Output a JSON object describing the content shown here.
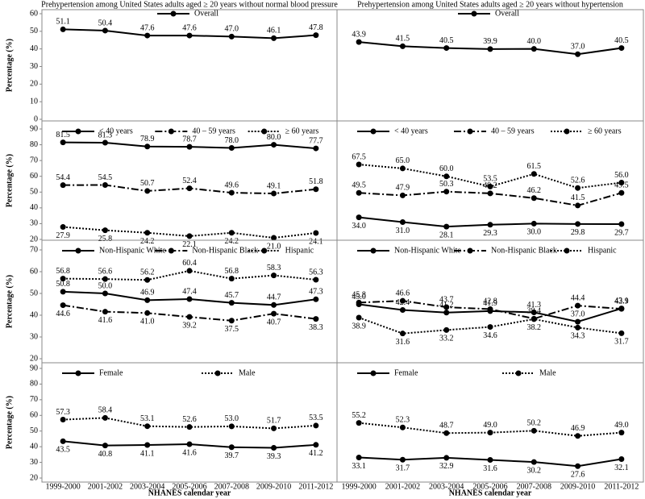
{
  "chart_data": [
    {
      "type": "line",
      "title": "Prehypertension among United States adults aged ≥ 20 years without normal blood pressure",
      "ylabel": "Percentage (%)",
      "ylim": [
        0,
        60
      ],
      "yticks": [
        0,
        10,
        20,
        30,
        40,
        50,
        60
      ],
      "legend": "top",
      "series": [
        {
          "name": "Overall",
          "color": "#000000",
          "dash": "solid",
          "values": [
            51.1,
            50.4,
            47.6,
            47.6,
            47.0,
            46.1,
            47.8
          ],
          "value_labels": [
            "51.1",
            "50.4",
            "47.6",
            "47.6",
            "47.0",
            "46.1",
            "47.8"
          ]
        }
      ]
    },
    {
      "type": "line",
      "title": "Prehypertension among United States adults aged ≥ 20 years without hypertension",
      "ylim": [
        0,
        60
      ],
      "legend": "top",
      "series": [
        {
          "name": "Overall",
          "color": "#000000",
          "dash": "solid",
          "values": [
            43.9,
            41.5,
            40.5,
            39.9,
            40.0,
            37.0,
            40.5
          ],
          "value_labels": [
            "43.9",
            "41.5",
            "40.5",
            "39.9",
            "40.0",
            "37.0",
            "40.5"
          ]
        }
      ]
    },
    {
      "type": "line",
      "ylabel": "Percentage (%)",
      "ylim": [
        20,
        90
      ],
      "yticks": [
        20,
        30,
        40,
        50,
        60,
        70,
        80,
        90
      ],
      "legend": "top",
      "series": [
        {
          "name": "< 40 years",
          "color": "#000000",
          "dash": "solid",
          "values": [
            81.5,
            81.3,
            78.9,
            78.7,
            78.0,
            80.0,
            77.7
          ],
          "value_labels": [
            "81.5",
            "81.3",
            "78.9",
            "78.7",
            "78.0",
            "80.0",
            "77.7"
          ]
        },
        {
          "name": "40 – 59 years",
          "color": "#000000",
          "dash": "dashdot",
          "values": [
            54.4,
            54.5,
            50.7,
            52.4,
            49.6,
            49.1,
            51.8
          ],
          "value_labels": [
            "54.4",
            "54.5",
            "50.7",
            "52.4",
            "49.6",
            "49.1",
            "51.8"
          ]
        },
        {
          "name": "≥ 60 years",
          "color": "#000000",
          "dash": "dotted",
          "values": [
            27.9,
            25.8,
            24.2,
            22.1,
            24.2,
            21.0,
            24.1
          ],
          "value_labels": [
            "27.9",
            "25.8",
            "24.2",
            "22.1",
            "24.2",
            "21.0",
            "24.1"
          ]
        }
      ]
    },
    {
      "type": "line",
      "ylim": [
        20,
        90
      ],
      "legend": "top",
      "series": [
        {
          "name": "< 40 years",
          "color": "#000000",
          "dash": "solid",
          "values": [
            34.0,
            31.0,
            28.1,
            29.3,
            30.0,
            29.8,
            29.7
          ],
          "value_labels": [
            "34.0",
            "31.0",
            "28.1",
            "29.3",
            "30.0",
            "29.8",
            "29.7"
          ]
        },
        {
          "name": "40 – 59 years",
          "color": "#000000",
          "dash": "dashdot",
          "values": [
            49.5,
            47.9,
            50.3,
            49.2,
            46.2,
            41.5,
            49.5
          ],
          "value_labels": [
            "49.5",
            "47.9",
            "50.3",
            "49.2",
            "46.2",
            "41.5",
            "49.5"
          ]
        },
        {
          "name": "≥ 60 years",
          "color": "#000000",
          "dash": "dotted",
          "values": [
            67.5,
            65.0,
            60.0,
            53.5,
            61.5,
            52.6,
            56.0
          ],
          "value_labels": [
            "67.5",
            "65.0",
            "60.0",
            "53.5",
            "61.5",
            "52.6",
            "56.0"
          ]
        }
      ]
    },
    {
      "type": "line",
      "ylabel": "Percentage (%)",
      "ylim": [
        20,
        70
      ],
      "yticks": [
        20,
        30,
        40,
        50,
        60,
        70
      ],
      "legend": "top",
      "series": [
        {
          "name": "Non-Hispanic White",
          "color": "#000000",
          "dash": "solid",
          "values": [
            50.8,
            50.0,
            46.9,
            47.4,
            45.7,
            44.7,
            47.3
          ],
          "value_labels": [
            "50.8",
            "50.0",
            "46.9",
            "47.4",
            "45.7",
            "44.7",
            "47.3"
          ]
        },
        {
          "name": "Non-Hispanic Black",
          "color": "#000000",
          "dash": "dashdot",
          "values": [
            44.6,
            41.6,
            41.0,
            39.2,
            37.5,
            40.7,
            38.3
          ],
          "value_labels": [
            "44.6",
            "41.6",
            "41.0",
            "39.2",
            "37.5",
            "40.7",
            "38.3"
          ]
        },
        {
          "name": "Hispanic",
          "color": "#000000",
          "dash": "dotted",
          "values": [
            56.8,
            56.6,
            56.2,
            60.4,
            56.8,
            58.3,
            56.3
          ],
          "value_labels": [
            "56.8",
            "56.6",
            "56.2",
            "60.4",
            "56.8",
            "58.3",
            "56.3"
          ]
        }
      ]
    },
    {
      "type": "line",
      "ylim": [
        20,
        70
      ],
      "legend": "top",
      "series": [
        {
          "name": "Non-Hispanic White",
          "color": "#000000",
          "dash": "solid",
          "values": [
            45.0,
            42.4,
            41.2,
            41.9,
            41.3,
            37.0,
            43.1
          ],
          "value_labels": [
            "45.0",
            "42.4",
            "41.2",
            "41.9",
            "41.3",
            "37.0",
            "43.1"
          ]
        },
        {
          "name": "Non-Hispanic Black",
          "color": "#000000",
          "dash": "dashdot",
          "values": [
            45.8,
            46.6,
            43.7,
            42.8,
            38.4,
            44.4,
            42.9
          ],
          "value_labels": [
            "45.8",
            "46.6",
            "43.7",
            "42.8",
            "38.4",
            "44.4",
            "42.9"
          ]
        },
        {
          "name": "Hispanic",
          "color": "#000000",
          "dash": "dotted",
          "values": [
            38.9,
            31.6,
            33.2,
            34.6,
            38.2,
            34.3,
            31.7
          ],
          "value_labels": [
            "38.9",
            "31.6",
            "33.2",
            "34.6",
            "38.2",
            "34.3",
            "31.7"
          ]
        }
      ]
    },
    {
      "type": "line",
      "ylabel": "Percentage (%)",
      "xlabel": "NHANES calendar year",
      "categories": [
        "1999-2000",
        "2001-2002",
        "2003-2004",
        "2005-2006",
        "2007-2008",
        "2009-2010",
        "2011-2012"
      ],
      "ylim": [
        20,
        90
      ],
      "yticks": [
        20,
        30,
        40,
        50,
        60,
        70,
        80,
        90
      ],
      "legend": "top",
      "series": [
        {
          "name": "Female",
          "color": "#000000",
          "dash": "solid",
          "values": [
            43.5,
            40.8,
            41.1,
            41.6,
            39.7,
            39.3,
            41.2
          ],
          "value_labels": [
            "43.5",
            "40.8",
            "41.1",
            "41.6",
            "39.7",
            "39.3",
            "41.2"
          ]
        },
        {
          "name": "Male",
          "color": "#000000",
          "dash": "dotted",
          "values": [
            57.3,
            58.4,
            53.1,
            52.6,
            53.0,
            51.7,
            53.5
          ],
          "value_labels": [
            "57.3",
            "58.4",
            "53.1",
            "52.6",
            "53.0",
            "51.7",
            "53.5"
          ]
        }
      ]
    },
    {
      "type": "line",
      "xlabel": "NHANES calendar year",
      "categories": [
        "1999-2000",
        "2001-2002",
        "2003-2004",
        "2005-2006",
        "2007-2008",
        "2009-2010",
        "2011-2012"
      ],
      "ylim": [
        20,
        90
      ],
      "legend": "top",
      "series": [
        {
          "name": "Female",
          "color": "#000000",
          "dash": "solid",
          "values": [
            33.1,
            31.7,
            32.9,
            31.6,
            30.2,
            27.6,
            32.1
          ],
          "value_labels": [
            "33.1",
            "31.7",
            "32.9",
            "31.6",
            "30.2",
            "27.6",
            "32.1"
          ]
        },
        {
          "name": "Male",
          "color": "#000000",
          "dash": "dotted",
          "values": [
            55.2,
            52.3,
            48.7,
            49.0,
            50.2,
            46.9,
            49.0
          ],
          "value_labels": [
            "55.2",
            "52.3",
            "48.7",
            "49.0",
            "50.2",
            "46.9",
            "49.0"
          ]
        }
      ]
    }
  ]
}
